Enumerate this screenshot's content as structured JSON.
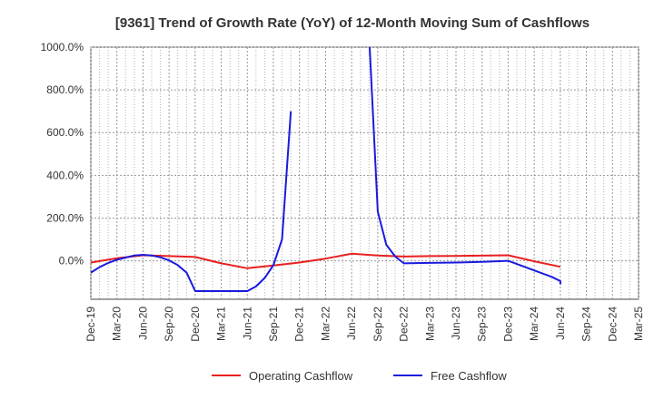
{
  "chart_data": {
    "type": "line",
    "title": "[9361]  Trend of Growth Rate (YoY) of 12-Month Moving Sum of Cashflows",
    "xlabel": "",
    "ylabel": "",
    "ylim": [
      -180,
      1000
    ],
    "y_ticks": [
      0,
      200,
      400,
      600,
      800,
      1000
    ],
    "y_tick_labels": [
      "0.0%",
      "200.0%",
      "400.0%",
      "600.0%",
      "800.0%",
      "1000.0%"
    ],
    "x_tick_labels": [
      "Dec-19",
      "Mar-20",
      "Jun-20",
      "Sep-20",
      "Dec-20",
      "Mar-21",
      "Jun-21",
      "Sep-21",
      "Dec-21",
      "Mar-22",
      "Jun-22",
      "Sep-22",
      "Dec-22",
      "Mar-23",
      "Jun-23",
      "Sep-23",
      "Dec-23",
      "Mar-24",
      "Jun-24",
      "Sep-24",
      "Dec-24",
      "Mar-25"
    ],
    "grid": true,
    "legend_position": "bottom",
    "series": [
      {
        "name": "Operating Cashflow",
        "color": "#e8201f",
        "points": [
          [
            0,
            -8
          ],
          [
            1,
            12
          ],
          [
            2,
            26
          ],
          [
            3,
            22
          ],
          [
            4,
            18
          ],
          [
            5,
            -12
          ],
          [
            6,
            -35
          ],
          [
            7,
            -22
          ],
          [
            8,
            -8
          ],
          [
            9,
            10
          ],
          [
            10,
            33
          ],
          [
            11,
            25
          ],
          [
            12,
            20
          ],
          [
            13,
            22
          ],
          [
            14,
            23
          ],
          [
            15,
            24
          ],
          [
            16,
            26
          ],
          [
            17,
            -2
          ],
          [
            18,
            -28
          ]
        ]
      },
      {
        "name": "Free Cashflow",
        "color": "#1a1adf",
        "points": [
          [
            0,
            -55
          ],
          [
            0.33,
            -30
          ],
          [
            0.67,
            -10
          ],
          [
            1,
            5
          ],
          [
            1.33,
            15
          ],
          [
            1.67,
            25
          ],
          [
            2,
            28
          ],
          [
            2.33,
            25
          ],
          [
            2.67,
            16
          ],
          [
            3,
            2
          ],
          [
            3.33,
            -20
          ],
          [
            3.67,
            -55
          ],
          [
            4,
            -142
          ],
          [
            4.33,
            -142
          ],
          [
            4.67,
            -142
          ],
          [
            5,
            -142
          ],
          [
            5.33,
            -142
          ],
          [
            5.67,
            -142
          ],
          [
            6,
            -142
          ],
          [
            6.33,
            -120
          ],
          [
            6.67,
            -80
          ],
          [
            7,
            -20
          ],
          [
            7.33,
            100
          ],
          [
            7.67,
            700
          ],
          [
            null,
            null
          ],
          [
            10.67,
            1050
          ],
          [
            11,
            230
          ],
          [
            11.33,
            75
          ],
          [
            11.67,
            20
          ],
          [
            12,
            -12
          ],
          [
            13,
            -10
          ],
          [
            14,
            -8
          ],
          [
            15,
            -5
          ],
          [
            16,
            0
          ],
          [
            16.67,
            -30
          ],
          [
            17,
            -45
          ],
          [
            17.67,
            -75
          ],
          [
            18,
            -95
          ],
          [
            18,
            -110
          ]
        ]
      }
    ]
  }
}
